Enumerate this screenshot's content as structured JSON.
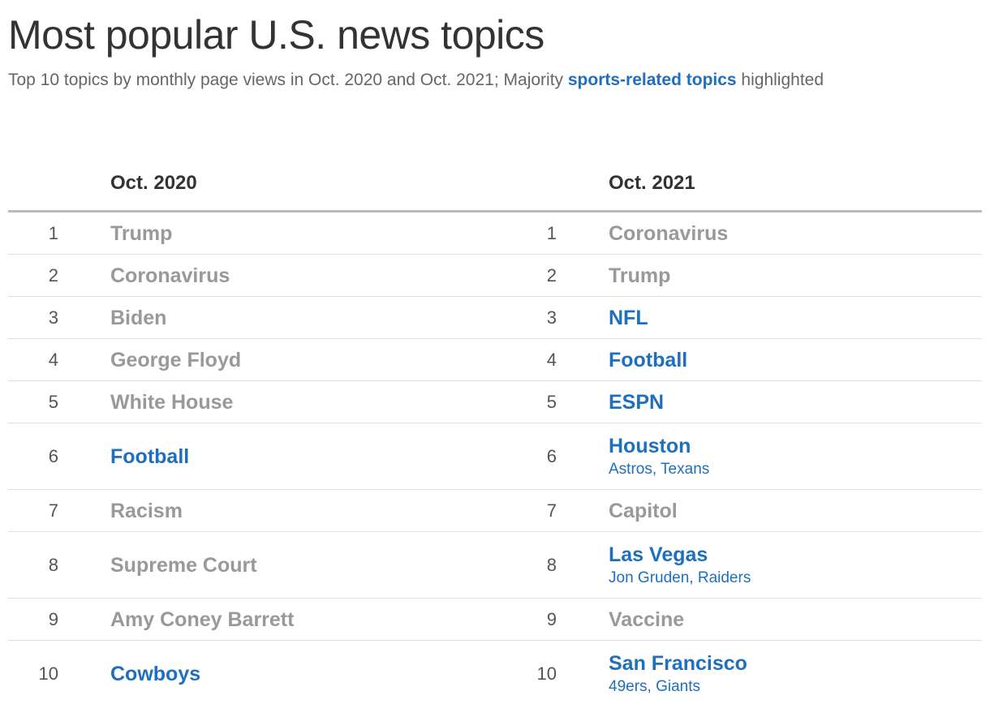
{
  "title": "Most popular U.S. news topics",
  "subtitle": {
    "before": "Top 10 topics by monthly page views in Oct. 2020 and Oct. 2021;  Majority ",
    "highlight": "sports-related topics",
    "after": " highlighted"
  },
  "colors": {
    "sports_highlight": "#1f6fbf",
    "other_topic": "#999999",
    "title": "#333333"
  },
  "chart_data": {
    "type": "table",
    "columns": [
      "Oct. 2020",
      "Oct. 2021"
    ],
    "rows": [
      {
        "rank": "1",
        "left": {
          "topic": "Trump",
          "sports": false,
          "sub": ""
        },
        "right": {
          "topic": "Coronavirus",
          "sports": false,
          "sub": ""
        }
      },
      {
        "rank": "2",
        "left": {
          "topic": "Coronavirus",
          "sports": false,
          "sub": ""
        },
        "right": {
          "topic": "Trump",
          "sports": false,
          "sub": ""
        }
      },
      {
        "rank": "3",
        "left": {
          "topic": "Biden",
          "sports": false,
          "sub": ""
        },
        "right": {
          "topic": "NFL",
          "sports": true,
          "sub": ""
        }
      },
      {
        "rank": "4",
        "left": {
          "topic": "George Floyd",
          "sports": false,
          "sub": ""
        },
        "right": {
          "topic": "Football",
          "sports": true,
          "sub": ""
        }
      },
      {
        "rank": "5",
        "left": {
          "topic": "White House",
          "sports": false,
          "sub": ""
        },
        "right": {
          "topic": "ESPN",
          "sports": true,
          "sub": ""
        }
      },
      {
        "rank": "6",
        "left": {
          "topic": "Football",
          "sports": true,
          "sub": ""
        },
        "right": {
          "topic": "Houston",
          "sports": true,
          "sub": "Astros, Texans"
        }
      },
      {
        "rank": "7",
        "left": {
          "topic": "Racism",
          "sports": false,
          "sub": ""
        },
        "right": {
          "topic": "Capitol",
          "sports": false,
          "sub": ""
        }
      },
      {
        "rank": "8",
        "left": {
          "topic": "Supreme Court",
          "sports": false,
          "sub": ""
        },
        "right": {
          "topic": "Las Vegas",
          "sports": true,
          "sub": "Jon Gruden, Raiders"
        }
      },
      {
        "rank": "9",
        "left": {
          "topic": "Amy Coney Barrett",
          "sports": false,
          "sub": ""
        },
        "right": {
          "topic": "Vaccine",
          "sports": false,
          "sub": ""
        }
      },
      {
        "rank": "10",
        "left": {
          "topic": "Cowboys",
          "sports": true,
          "sub": ""
        },
        "right": {
          "topic": "San Francisco",
          "sports": true,
          "sub": "49ers, Giants"
        }
      }
    ]
  }
}
